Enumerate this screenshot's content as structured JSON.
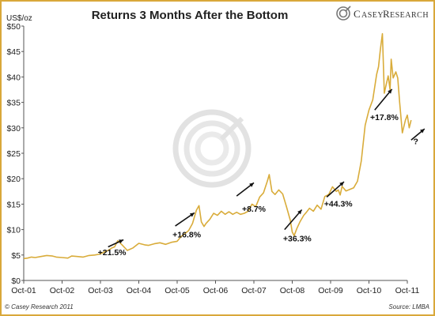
{
  "brand": {
    "logo_first": "C",
    "logo_rest_1": "ASEY ",
    "logo_second": "R",
    "logo_rest_2": "ESEARCH",
    "logo_icon": "swirl-logo-icon"
  },
  "footer": {
    "copyright": "© Casey Research 2011",
    "source": "Source: LMBA"
  },
  "colors": {
    "series": "#d9ac3a",
    "arrow": "#111111",
    "frame": "#d9a83a",
    "watermark": "#dcdcdc"
  },
  "chart_data": {
    "type": "line",
    "title": "Returns 3 Months After the Bottom",
    "ylabel": "US$/oz",
    "xlabel": "",
    "ylim": [
      0,
      50
    ],
    "yticks": [
      "$0",
      "$5",
      "$10",
      "$15",
      "$20",
      "$25",
      "$30",
      "$35",
      "$40",
      "$45",
      "$50"
    ],
    "yvalues": [
      0,
      5,
      10,
      15,
      20,
      25,
      30,
      35,
      40,
      45,
      50
    ],
    "xticks": [
      "Oct-01",
      "Oct-02",
      "Oct-03",
      "Oct-04",
      "Oct-05",
      "Oct-06",
      "Oct-07",
      "Oct-08",
      "Oct-09",
      "Oct-10",
      "Oct-11"
    ],
    "xtick_years": [
      2001.75,
      2002.75,
      2003.75,
      2004.75,
      2005.75,
      2006.75,
      2007.75,
      2008.75,
      2009.75,
      2010.75,
      2011.75
    ],
    "xlim": [
      2001.75,
      2011.85
    ],
    "grid": false,
    "series": [
      {
        "x": [
          2001.75,
          2001.85,
          2001.95,
          2002.05,
          2002.2,
          2002.35,
          2002.5,
          2002.6,
          2002.75,
          2002.9,
          2003.0,
          2003.15,
          2003.3,
          2003.45,
          2003.6,
          2003.75,
          2003.85,
          2003.95,
          2004.05,
          2004.12,
          2004.2,
          2004.3,
          2004.45,
          2004.6,
          2004.75,
          2004.9,
          2005.0,
          2005.15,
          2005.3,
          2005.45,
          2005.6,
          2005.75,
          2005.85,
          2005.95,
          2006.05,
          2006.15,
          2006.25,
          2006.32,
          2006.38,
          2006.45,
          2006.5,
          2006.6,
          2006.7,
          2006.8,
          2006.9,
          2007.0,
          2007.1,
          2007.2,
          2007.3,
          2007.4,
          2007.5,
          2007.6,
          2007.7,
          2007.8,
          2007.9,
          2008.0,
          2008.1,
          2008.15,
          2008.22,
          2008.3,
          2008.4,
          2008.5,
          2008.6,
          2008.7,
          2008.75,
          2008.8,
          2008.87,
          2008.95,
          2009.05,
          2009.12,
          2009.2,
          2009.3,
          2009.4,
          2009.5,
          2009.6,
          2009.7,
          2009.8,
          2009.9,
          2009.95,
          2010.0,
          2010.05,
          2010.15,
          2010.25,
          2010.35,
          2010.45,
          2010.55,
          2010.65,
          2010.75,
          2010.85,
          2010.95,
          2011.0,
          2011.05,
          2011.1,
          2011.15,
          2011.2,
          2011.25,
          2011.3,
          2011.33,
          2011.38,
          2011.45,
          2011.5,
          2011.55,
          2011.62,
          2011.7,
          2011.75,
          2011.8,
          2011.85
        ],
        "y": [
          4.3,
          4.4,
          4.6,
          4.5,
          4.7,
          4.9,
          4.8,
          4.6,
          4.5,
          4.4,
          4.8,
          4.7,
          4.6,
          4.9,
          5.0,
          5.2,
          5.6,
          5.9,
          6.4,
          6.6,
          7.8,
          7.1,
          5.9,
          6.4,
          7.3,
          7.0,
          6.9,
          7.2,
          7.4,
          7.1,
          7.5,
          7.7,
          8.6,
          9.2,
          9.8,
          11.2,
          13.8,
          14.7,
          11.5,
          10.6,
          11.2,
          12.0,
          13.2,
          12.8,
          13.6,
          13.0,
          13.5,
          13.0,
          13.4,
          13.0,
          13.2,
          13.6,
          15.0,
          14.5,
          16.4,
          17.2,
          19.5,
          20.8,
          17.5,
          16.9,
          17.8,
          17.0,
          14.5,
          11.8,
          9.5,
          8.8,
          10.2,
          11.5,
          12.8,
          13.4,
          14.2,
          13.6,
          14.8,
          14.0,
          16.5,
          16.9,
          18.4,
          17.5,
          17.8,
          16.8,
          18.5,
          17.6,
          17.9,
          18.2,
          19.5,
          23.5,
          30.5,
          33.5,
          35.5,
          40.5,
          42.0,
          45.5,
          48.5,
          36.8,
          38.5,
          40.2,
          37.5,
          43.5,
          39.8,
          41.0,
          39.8,
          35.0,
          29.0,
          31.5,
          32.5,
          30.0,
          31.5
        ],
        "name": ""
      }
    ],
    "annotations": [
      {
        "label": "+21.5%",
        "x": 2004.05,
        "y": 5.0
      },
      {
        "label": "+16.8%",
        "x": 2006.0,
        "y": 8.5
      },
      {
        "label": "+8.7%",
        "x": 2007.75,
        "y": 13.5
      },
      {
        "label": "+36.3%",
        "x": 2008.88,
        "y": 7.7
      },
      {
        "label": "+44.3%",
        "x": 2009.95,
        "y": 14.5
      },
      {
        "label": "+17.8%",
        "x": 2011.15,
        "y": 31.5
      },
      {
        "label": "?",
        "x": 2011.97,
        "y": 26.8
      }
    ],
    "arrows": [
      {
        "x1": 2003.95,
        "y1": 6.6,
        "x2": 2004.35,
        "y2": 8.0
      },
      {
        "x1": 2005.7,
        "y1": 10.7,
        "x2": 2006.2,
        "y2": 13.3
      },
      {
        "x1": 2007.3,
        "y1": 16.6,
        "x2": 2007.75,
        "y2": 19.2
      },
      {
        "x1": 2008.55,
        "y1": 10.0,
        "x2": 2009.0,
        "y2": 13.9
      },
      {
        "x1": 2009.65,
        "y1": 16.4,
        "x2": 2010.1,
        "y2": 19.4
      },
      {
        "x1": 2010.9,
        "y1": 33.5,
        "x2": 2011.35,
        "y2": 37.6
      },
      {
        "x1": 2011.85,
        "y1": 27.6,
        "x2": 2012.2,
        "y2": 29.8
      }
    ]
  }
}
